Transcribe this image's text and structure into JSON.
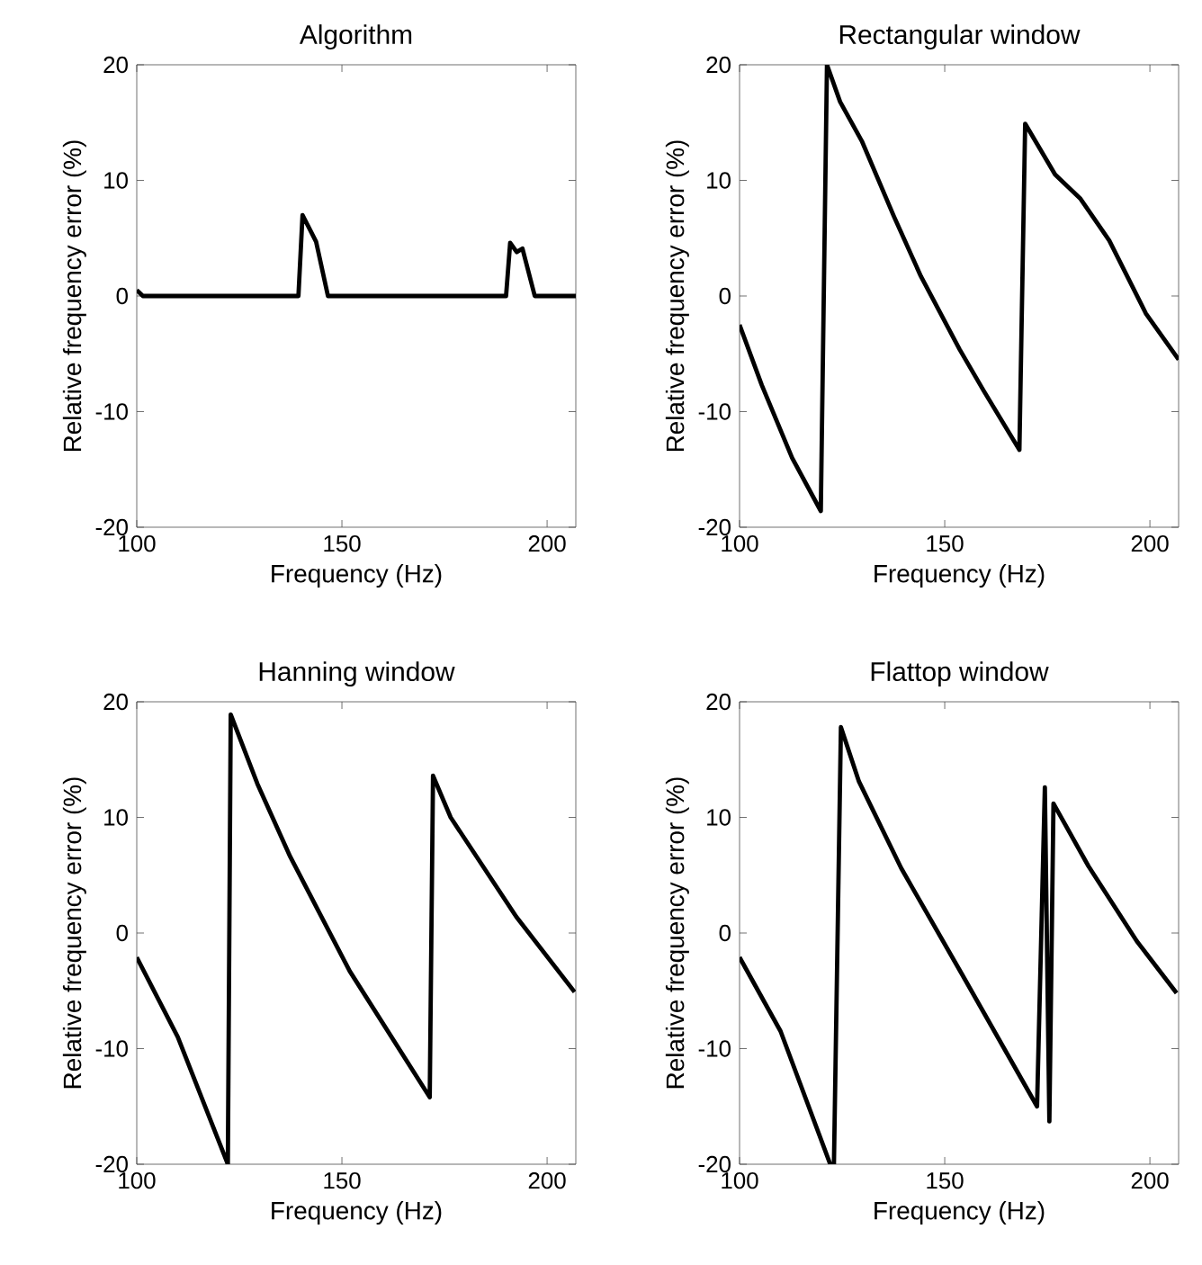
{
  "chart_data": [
    {
      "type": "line",
      "title": "Algorithm",
      "xlabel": "Frequency (Hz)",
      "ylabel": "Relative frequency error (%)",
      "xlim": [
        100,
        207
      ],
      "ylim": [
        -20,
        20
      ],
      "xticks": [
        100,
        150,
        200
      ],
      "yticks": [
        -20,
        -10,
        0,
        10,
        20
      ],
      "series": [
        {
          "color": "#000000",
          "x": [
            100,
            101.5,
            139.4,
            140.4,
            143.7,
            146.6,
            190,
            191,
            192.6,
            194,
            197,
            207
          ],
          "values": [
            0.5,
            0,
            0,
            7,
            4.7,
            0,
            0,
            4.6,
            3.8,
            4.1,
            0,
            0
          ]
        }
      ]
    },
    {
      "type": "line",
      "title": "Rectangular window",
      "xlabel": "Frequency (Hz)",
      "ylabel": "Relative frequency error (%)",
      "xlim": [
        100,
        207
      ],
      "ylim": [
        -20,
        20
      ],
      "xticks": [
        100,
        150,
        200
      ],
      "yticks": [
        -20,
        -10,
        0,
        10,
        20
      ],
      "series": [
        {
          "color": "#000000",
          "x": [
            100,
            105.4,
            112.8,
            119.8,
            121.3,
            124.5,
            129.8,
            137.6,
            144.2,
            153.6,
            159.5,
            168.2,
            169.6,
            176.9,
            183.1,
            190.1,
            199,
            207
          ],
          "values": [
            -2.5,
            -7.7,
            -14,
            -18.6,
            20,
            16.8,
            13.4,
            6.9,
            1.7,
            -4.6,
            -8.2,
            -13.3,
            14.9,
            10.5,
            8.4,
            4.8,
            -1.5,
            -5.5
          ]
        }
      ]
    },
    {
      "type": "line",
      "title": "Hanning window",
      "xlabel": "Frequency (Hz)",
      "ylabel": "Relative frequency error (%)",
      "xlim": [
        100,
        207
      ],
      "ylim": [
        -20,
        20
      ],
      "xticks": [
        100,
        150,
        200
      ],
      "yticks": [
        -20,
        -10,
        0,
        10,
        20
      ],
      "series": [
        {
          "color": "#000000",
          "x": [
            100,
            110,
            122.2,
            122.9,
            129.4,
            137.4,
            151.9,
            171.4,
            172.2,
            176.5,
            192.5,
            206.7
          ],
          "values": [
            -2.1,
            -9,
            -20,
            18.9,
            12.9,
            6.6,
            -3.3,
            -14.2,
            13.6,
            10,
            1.4,
            -5.1
          ]
        }
      ]
    },
    {
      "type": "line",
      "title": "Flattop window",
      "xlabel": "Frequency (Hz)",
      "ylabel": "Relative frequency error (%)",
      "xlim": [
        100,
        207
      ],
      "ylim": [
        -20,
        20
      ],
      "xticks": [
        100,
        150,
        200
      ],
      "yticks": [
        -20,
        -10,
        0,
        10,
        20
      ],
      "series": [
        {
          "color": "#000000",
          "x": [
            100,
            110,
            122.1,
            123,
            124.7,
            129.1,
            139.4,
            154.1,
            172.5,
            174.4,
            175.5,
            176.5,
            185,
            196.8,
            206.5
          ],
          "values": [
            -2.1,
            -8.5,
            -20,
            -20,
            17.8,
            13.1,
            5.6,
            -3.5,
            -15,
            12.6,
            -16.3,
            11.2,
            5.8,
            -0.7,
            -5.2
          ]
        }
      ]
    }
  ]
}
